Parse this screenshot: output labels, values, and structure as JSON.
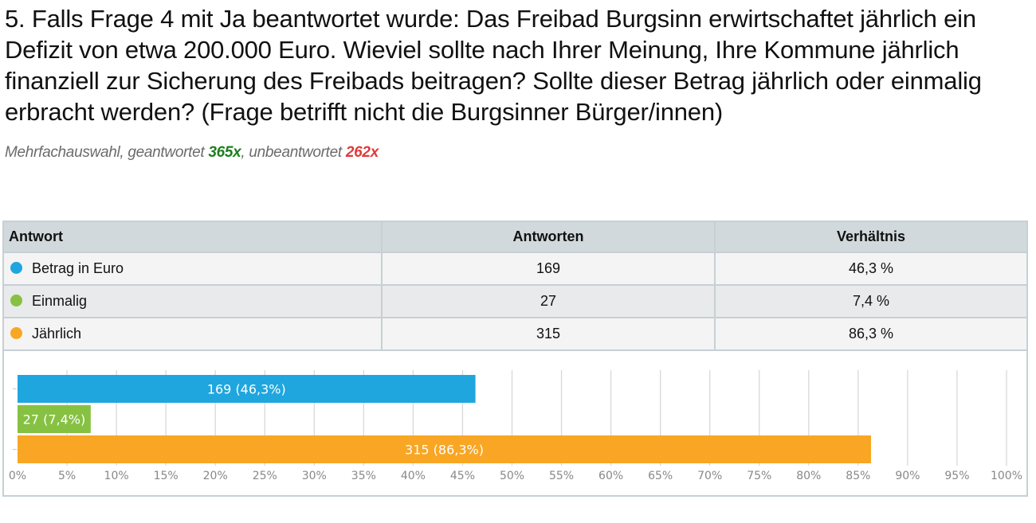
{
  "question": {
    "title": "5. Falls Frage 4 mit Ja beantwortet wurde: Das Freibad Burgsinn erwirtschaftet jährlich ein Defizit von etwa 200.000 Euro. Wieviel sollte nach Ihrer Meinung, Ihre Kommune jährlich finanziell zur Sicherung des Freibads beitragen? Sollte dieser Betrag jährlich oder einmalig erbracht werden? (Frage betrifft nicht die Burgsinner Bürger/innen)",
    "meta_prefix": "Mehrfachauswahl, geantwortet ",
    "answered": "365x",
    "meta_middle": ", unbeantwortet ",
    "unanswered": "262x"
  },
  "table": {
    "headers": [
      "Antwort",
      "Antworten",
      "Verhältnis"
    ],
    "rows": [
      {
        "label": "Betrag in Euro",
        "count": "169",
        "ratio": "46,3 %",
        "color": "#1fa6de"
      },
      {
        "label": "Einmalig",
        "count": "27",
        "ratio": "7,4 %",
        "color": "#86c142"
      },
      {
        "label": "Jährlich",
        "count": "315",
        "ratio": "86,3 %",
        "color": "#f8a624"
      }
    ]
  },
  "chart_data": {
    "type": "bar",
    "orientation": "horizontal",
    "title": "",
    "xlabel": "",
    "ylabel": "",
    "categories": [
      "Betrag in Euro",
      "Einmalig",
      "Jährlich"
    ],
    "values": [
      46.3,
      7.4,
      86.3
    ],
    "counts": [
      169,
      27,
      315
    ],
    "data_labels": [
      "169 (46,3%)",
      "27 (7,4%)",
      "315 (86,3%)"
    ],
    "colors": [
      "#1fa6de",
      "#86c142",
      "#f8a624"
    ],
    "xlim": [
      0,
      100
    ],
    "x_ticks": [
      0,
      5,
      10,
      15,
      20,
      25,
      30,
      35,
      40,
      45,
      50,
      55,
      60,
      65,
      70,
      75,
      80,
      85,
      90,
      95,
      100
    ],
    "x_tick_labels": [
      "0%",
      "5%",
      "10%",
      "15%",
      "20%",
      "25%",
      "30%",
      "35%",
      "40%",
      "45%",
      "50%",
      "55%",
      "60%",
      "65%",
      "70%",
      "75%",
      "80%",
      "85%",
      "90%",
      "95%",
      "100%"
    ],
    "grid": true,
    "legend": "none"
  }
}
